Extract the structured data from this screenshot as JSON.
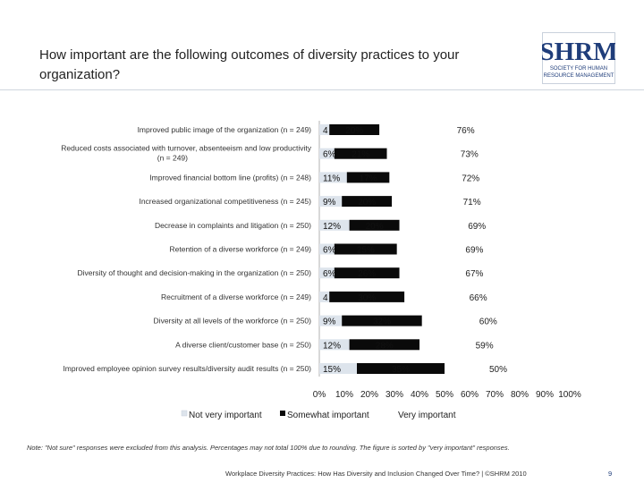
{
  "title": "How important are the following outcomes of diversity practices to your organization?",
  "logo": {
    "name": "SHRM",
    "line1": "SOCIETY FOR HUMAN",
    "line2": "RESOURCE MANAGEMENT",
    "color": "#1f3d7a"
  },
  "note": "Note: \"Not sure\" responses were excluded from this analysis. Percentages may not total 100% due to rounding. The figure is sorted by \"very important\" responses.",
  "footer": "Workplace Diversity Practices: How Has Diversity and Inclusion Changed Over Time? | ©SHRM 2010",
  "page_number": "9",
  "colors": {
    "not_very_important": "#dde4ec",
    "somewhat_important": "#0a0a0a",
    "very_important": "#ffffff"
  },
  "chart_data": {
    "type": "bar",
    "orientation": "horizontal",
    "stacked": true,
    "percent": true,
    "title": "How important are the following outcomes of diversity practices to your organization?",
    "categories": [
      "Improved public image of the organization (n = 249)",
      "Reduced costs associated with turnover, absenteeism and low productivity (n = 249)",
      "Improved financial bottom line (profits) (n = 248)",
      "Increased organizational competitiveness (n = 245)",
      "Decrease in complaints and litigation (n = 250)",
      "Retention of a diverse workforce (n = 249)",
      "Diversity of thought and decision-making in the organization (n = 250)",
      "Recruitment of a diverse workforce (n = 249)",
      "Diversity at all levels of the workforce (n = 250)",
      "A diverse client/customer base (n = 250)",
      "Improved employee opinion survey results/diversity audit results (n = 250)"
    ],
    "category_lines": [
      [
        "Improved public image of the organization (n = 249)"
      ],
      [
        "Reduced costs associated with turnover, absenteeism and low productivity",
        "(n = 249)"
      ],
      [
        "Improved financial bottom line (profits) (n = 248)"
      ],
      [
        "Increased organizational competitiveness (n = 245)"
      ],
      [
        "Decrease in complaints and litigation (n = 250)"
      ],
      [
        "Retention of a diverse workforce (n = 249)"
      ],
      [
        "Diversity of thought and decision-making in the organization (n = 250)"
      ],
      [
        "Recruitment of a diverse workforce (n = 249)"
      ],
      [
        "Diversity at all levels of the workforce (n = 250)"
      ],
      [
        "A diverse client/customer base (n = 250)"
      ],
      [
        "Improved employee opinion survey results/diversity audit results (n = 250)"
      ]
    ],
    "series": [
      {
        "name": "Not very important",
        "values": [
          4,
          6,
          11,
          9,
          12,
          6,
          6,
          4,
          9,
          12,
          15
        ]
      },
      {
        "name": "Somewhat important",
        "values": [
          20,
          21,
          17,
          20,
          20,
          25,
          26,
          30,
          32,
          28,
          35
        ]
      },
      {
        "name": "Very important",
        "values": [
          76,
          73,
          72,
          71,
          69,
          69,
          67,
          66,
          60,
          59,
          50
        ]
      }
    ],
    "value_labels": [
      [
        "4",
        "20%",
        "76%"
      ],
      [
        "6%",
        "21%",
        "73%"
      ],
      [
        "11%",
        "17%",
        "72%"
      ],
      [
        "9%",
        "20%",
        "71%"
      ],
      [
        "12%",
        "20%",
        "69%"
      ],
      [
        "6%",
        "25%",
        "69%"
      ],
      [
        "6%",
        "26%",
        "67%"
      ],
      [
        "4",
        "30%",
        "66%"
      ],
      [
        "9%",
        "32%",
        "60%"
      ],
      [
        "12%",
        "28%",
        "59%"
      ],
      [
        "15%",
        "35%",
        "50%"
      ]
    ],
    "xlim": [
      0,
      100
    ],
    "x_ticks": [
      "0%",
      "10%",
      "20%",
      "30%",
      "40%",
      "50%",
      "60%",
      "70%",
      "80%",
      "90%",
      "100%"
    ],
    "grid": false,
    "legend_position": "bottom",
    "legend": [
      "Not very important",
      "Somewhat important",
      "Very important"
    ]
  }
}
